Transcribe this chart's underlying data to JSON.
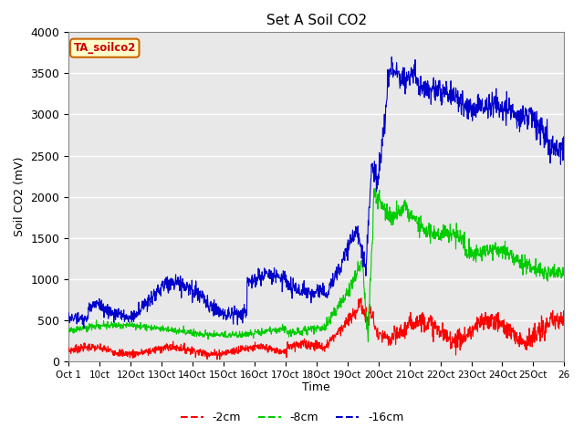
{
  "title": "Set A Soil CO2",
  "ylabel": "Soil CO2 (mV)",
  "xlabel": "Time",
  "xtick_labels": [
    "Oct 1",
    "10ct",
    "12Oct",
    "13Oct",
    "14Oct",
    "15Oct",
    "16Oct",
    "17Oct",
    "18Oct",
    "19Oct",
    "20Oct",
    "21Oct",
    "22Oct",
    "23Oct",
    "24Oct",
    "25Oct",
    "26"
  ],
  "ylim": [
    0,
    4000
  ],
  "yticks": [
    0,
    500,
    1000,
    1500,
    2000,
    2500,
    3000,
    3500,
    4000
  ],
  "bg_color": "#e8e8e8",
  "legend_label_box": "TA_soilco2",
  "series": {
    "red": {
      "label": "-2cm",
      "color": "#ff0000"
    },
    "green": {
      "label": "-8cm",
      "color": "#00cc00"
    },
    "blue": {
      "label": "-16cm",
      "color": "#0000cc"
    }
  }
}
